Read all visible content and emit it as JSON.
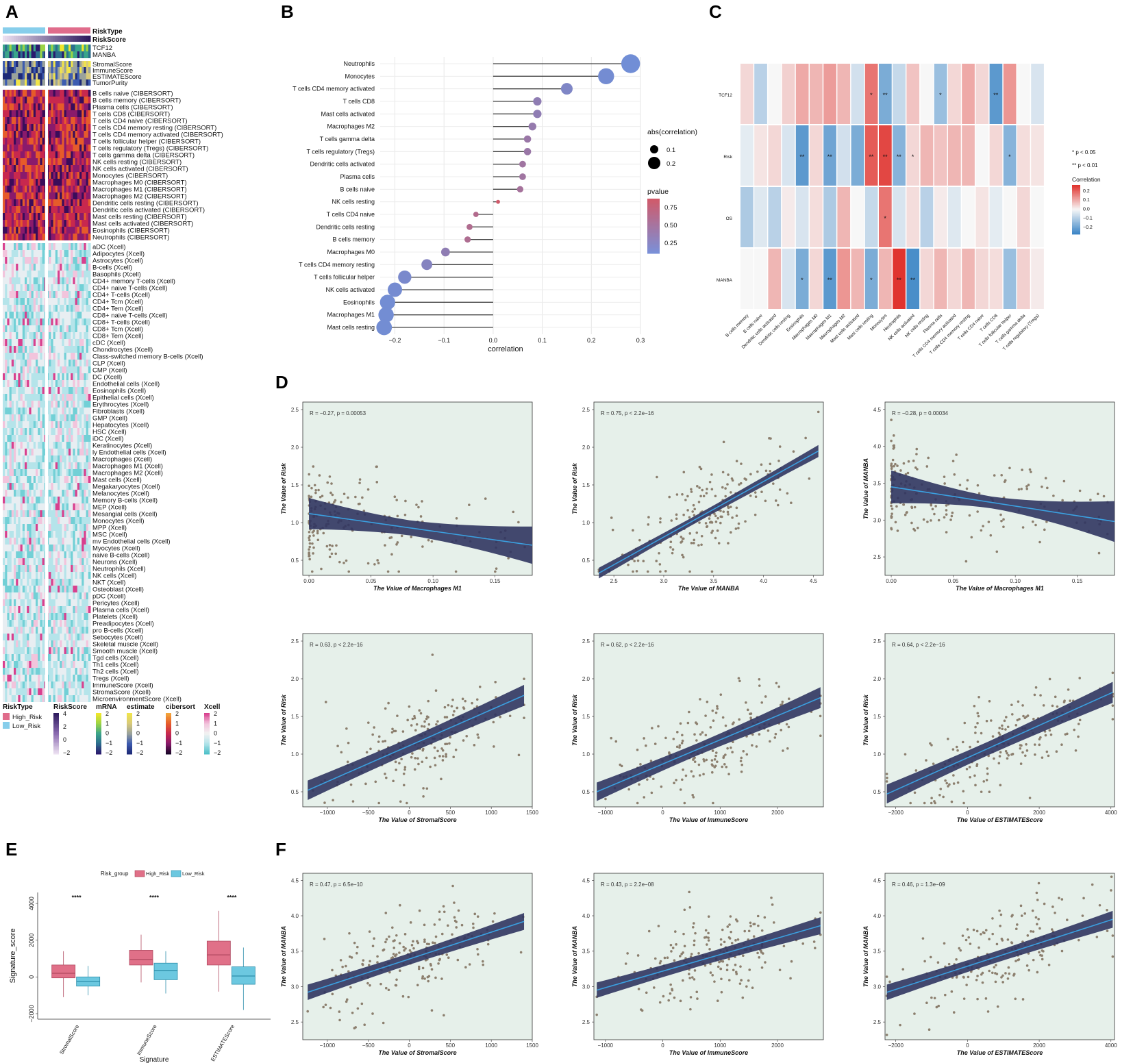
{
  "letters": {
    "a": "A",
    "b": "B",
    "c": "C",
    "d": "D",
    "e": "E",
    "f": "F"
  },
  "panelA": {
    "annot": [
      "RiskType",
      "RiskScore"
    ],
    "genes": [
      "TCF12",
      "MANBA"
    ],
    "estimate": [
      "StromalScore",
      "ImmuneScore",
      "ESTIMATEScore",
      "TumorPurity"
    ],
    "cibersort": [
      "B cells naive (CIBERSORT)",
      "B cells memory (CIBERSORT)",
      "Plasma cells (CIBERSORT)",
      "T cells CD8 (CIBERSORT)",
      "T cells CD4 naive (CIBERSORT)",
      "T cells CD4 memory resting (CIBERSORT)",
      "T cells CD4 memory activated (CIBERSORT)",
      "T cells follicular helper (CIBERSORT)",
      "T cells regulatory (Tregs) (CIBERSORT)",
      "T cells gamma delta (CIBERSORT)",
      "NK cells resting (CIBERSORT)",
      "NK cells activated (CIBERSORT)",
      "Monocytes (CIBERSORT)",
      "Macrophages M0 (CIBERSORT)",
      "Macrophages M1 (CIBERSORT)",
      "Macrophages M2 (CIBERSORT)",
      "Dendritic cells resting (CIBERSORT)",
      "Dendritic cells activated (CIBERSORT)",
      "Mast cells resting (CIBERSORT)",
      "Mast cells activated (CIBERSORT)",
      "Eosinophils (CIBERSORT)",
      "Neutrophils (CIBERSORT)"
    ],
    "xcell": [
      "aDC (Xcell)",
      "Adipocytes (Xcell)",
      "Astrocytes (Xcell)",
      "B-cells (Xcell)",
      "Basophils (Xcell)",
      "CD4+ memory T-cells (Xcell)",
      "CD4+ naive T-cells (Xcell)",
      "CD4+ T-cells (Xcell)",
      "CD4+ Tcm (Xcell)",
      "CD4+ Tem (Xcell)",
      "CD8+ naive T-cells (Xcell)",
      "CD8+ T-cells (Xcell)",
      "CD8+ Tcm (Xcell)",
      "CD8+ Tem (Xcell)",
      "cDC (Xcell)",
      "Chondrocytes (Xcell)",
      "Class-switched memory B-cells (Xcell)",
      "CLP (Xcell)",
      "CMP (Xcell)",
      "DC (Xcell)",
      "Endothelial cells (Xcell)",
      "Eosinophils (Xcell)",
      "Epithelial cells (Xcell)",
      "Erythrocytes (Xcell)",
      "Fibroblasts (Xcell)",
      "GMP (Xcell)",
      "Hepatocytes (Xcell)",
      "HSC (Xcell)",
      "iDC (Xcell)",
      "Keratinocytes (Xcell)",
      "ly Endothelial cells (Xcell)",
      "Macrophages (Xcell)",
      "Macrophages M1 (Xcell)",
      "Macrophages M2 (Xcell)",
      "Mast cells (Xcell)",
      "Megakaryocytes (Xcell)",
      "Melanocytes (Xcell)",
      "Memory B-cells (Xcell)",
      "MEP (Xcell)",
      "Mesangial cells (Xcell)",
      "Monocytes (Xcell)",
      "MPP (Xcell)",
      "MSC (Xcell)",
      "mv Endothelial cells (Xcell)",
      "Myocytes (Xcell)",
      "naive B-cells (Xcell)",
      "Neurons (Xcell)",
      "Neutrophils (Xcell)",
      "NK cells (Xcell)",
      "NKT (Xcell)",
      "Osteoblast (Xcell)",
      "pDC (Xcell)",
      "Pericytes (Xcell)",
      "Plasma cells (Xcell)",
      "Platelets (Xcell)",
      "Preadipocytes (Xcell)",
      "pro B-cells (Xcell)",
      "Sebocytes (Xcell)",
      "Skeletal muscle (Xcell)",
      "Smooth muscle (Xcell)",
      "Tgd cells (Xcell)",
      "Th1 cells (Xcell)",
      "Th2 cells (Xcell)",
      "Tregs (Xcell)",
      "ImmuneScore (Xcell)",
      "StromaScore (Xcell)",
      "MicroenvironmentScore (Xcell)"
    ],
    "legend": {
      "risktype_title": "RiskType",
      "high": "High_Risk",
      "low": "Low_Risk",
      "riskscore_title": "RiskScore",
      "riskscore_ticks": [
        "4",
        "2",
        "0",
        "−2"
      ],
      "mrna_title": "mRNA",
      "estimate_title": "estimate",
      "cibersort_title": "cibersort",
      "xcell_title": "Xcell",
      "ticks": [
        "2",
        "1",
        "0",
        "−1",
        "−2"
      ]
    }
  },
  "chart_data": [
    {
      "id": "B",
      "type": "lollipop",
      "categories": [
        "Neutrophils",
        "Monocytes",
        "T cells CD4 memory activated",
        "T cells CD8",
        "Mast cells activated",
        "Macrophages M2",
        "T cells gamma delta",
        "T cells regulatory (Tregs)",
        "Dendritic cells activated",
        "Plasma cells",
        "B cells naive",
        "NK cells resting",
        "T cells CD4 naive",
        "Dendritic cells resting",
        "B cells memory",
        "Macrophages M0",
        "T cells CD4 memory resting",
        "T cells follicular helper",
        "NK cells activated",
        "Eosinophils",
        "Macrophages M1",
        "Mast cells resting"
      ],
      "values": [
        0.28,
        0.23,
        0.15,
        0.09,
        0.09,
        0.08,
        0.07,
        0.07,
        0.06,
        0.06,
        0.055,
        0.01,
        -0.035,
        -0.048,
        -0.052,
        -0.097,
        -0.135,
        -0.18,
        -0.2,
        -0.215,
        -0.218,
        -0.222
      ],
      "pvalues": [
        0.02,
        0.05,
        0.15,
        0.3,
        0.3,
        0.35,
        0.4,
        0.4,
        0.45,
        0.45,
        0.5,
        0.9,
        0.62,
        0.6,
        0.58,
        0.3,
        0.2,
        0.1,
        0.06,
        0.04,
        0.04,
        0.04
      ],
      "xlabel": "correlation",
      "xticks": [
        "−0.2",
        "−0.1",
        "0.0",
        "0.1",
        "0.2",
        "0.3"
      ],
      "xlim": [
        -0.23,
        0.3
      ],
      "legend_size_title": "abs(correlation)",
      "legend_size_labels": [
        "0.1",
        "0.2"
      ],
      "legend_color_title": "pvalue",
      "legend_color_labels": [
        "0.75",
        "0.50",
        "0.25"
      ]
    },
    {
      "id": "C",
      "type": "heatmap",
      "rows": [
        "TCF12",
        "Risk",
        "OS",
        "MANBA"
      ],
      "columns": [
        "B cells memory",
        "B cells naive",
        "Dendritic cells activated",
        "Dendritic cells resting",
        "Eosinophils",
        "Macrophages M0",
        "Macrophages M1",
        "Macrophages M2",
        "Mast cells activated",
        "Mast cells resting",
        "Monocytes",
        "Neutrophils",
        "NK cells activated",
        "NK cells resting",
        "Plasma cells",
        "T cells CD4 memory activated",
        "T cells CD4 memory resting",
        "T cells CD4 naive",
        "T cells CD8",
        "T cells follicular helper",
        "T cells gamma delta",
        "T cells regulatory (Tregs)"
      ],
      "values": [
        [
          0.05,
          -0.1,
          0.0,
          0.06,
          0.12,
          0.1,
          0.14,
          0.1,
          -0.06,
          0.2,
          -0.2,
          -0.08,
          0.08,
          0.0,
          -0.15,
          0.05,
          0.12,
          0.05,
          -0.25,
          0.15,
          0.0,
          -0.05
        ],
        [
          -0.03,
          0.03,
          0.05,
          -0.05,
          -0.25,
          0.05,
          -0.22,
          -0.06,
          -0.2,
          0.24,
          0.27,
          -0.18,
          0.05,
          0.1,
          0.08,
          0.1,
          0.1,
          0.0,
          0.05,
          -0.18,
          0.04,
          0.03
        ],
        [
          -0.12,
          -0.04,
          -0.1,
          0.02,
          -0.05,
          0.04,
          -0.12,
          0.1,
          0.0,
          -0.08,
          0.2,
          -0.05,
          0.04,
          -0.1,
          0.02,
          -0.04,
          0.0,
          0.03,
          -0.03,
          0.0,
          0.05,
          0.0
        ],
        [
          0.0,
          0.0,
          0.1,
          -0.05,
          -0.2,
          0.05,
          -0.25,
          0.15,
          0.1,
          -0.2,
          0.1,
          0.3,
          -0.28,
          0.05,
          0.1,
          0.05,
          0.1,
          0.05,
          0.04,
          -0.15,
          0.06,
          0.02
        ]
      ],
      "stars": [
        [
          "",
          "",
          "",
          "",
          "",
          "",
          "",
          "",
          "",
          "*",
          "**",
          "",
          "",
          "",
          "*",
          "",
          "",
          "",
          "**",
          "",
          "",
          ""
        ],
        [
          "",
          "",
          "",
          "",
          "**",
          "",
          "**",
          "",
          "",
          "**",
          "**",
          "**",
          "*",
          "",
          "",
          "",
          "",
          "",
          "",
          "*",
          "",
          ""
        ],
        [
          "",
          "",
          "",
          "",
          "",
          "",
          "",
          "",
          "",
          "",
          "*",
          "",
          "",
          "",
          "",
          "",
          "",
          "",
          "",
          "",
          "",
          ""
        ],
        [
          "",
          "",
          "",
          "",
          "*",
          "",
          "**",
          "",
          "",
          "*",
          "",
          "**",
          "**",
          "",
          "",
          "",
          "",
          "",
          "",
          "",
          "",
          ""
        ]
      ],
      "legend": {
        "p05": "* p < 0.05",
        "p01": "** p < 0.01",
        "title": "Correlation",
        "ticks": [
          "0.2",
          "0.1",
          "0.0",
          "−0.1",
          "−0.2"
        ]
      }
    },
    {
      "id": "D1",
      "type": "scatter",
      "annotation": "R = −0.27, p = 0.00053",
      "xlabel": "The Value of Macrophages M1",
      "ylabel": "The Value of Risk",
      "xlim": [
        -0.005,
        0.18
      ],
      "ylim": [
        0.3,
        2.6
      ],
      "xticks": [
        0,
        0.05,
        0.1,
        0.15
      ],
      "xticklabels": [
        "0.00",
        "0.05",
        "0.10",
        "0.15"
      ],
      "yticks": [
        0.5,
        1.0,
        1.5,
        2.0,
        2.5
      ],
      "yticklabels": [
        "0.5",
        "1.0",
        "1.5",
        "2.0",
        "2.5"
      ],
      "fit": [
        [
          0,
          1.12
        ],
        [
          0.18,
          0.7
        ]
      ],
      "band": [
        0.1,
        0.25
      ],
      "xdist": "left"
    },
    {
      "id": "D2",
      "type": "scatter",
      "annotation": "R = 0.75, p < 2.2e−16",
      "xlabel": "The Value of MANBA",
      "ylabel": "The Value of Risk",
      "xlim": [
        2.3,
        4.6
      ],
      "ylim": [
        0.3,
        2.6
      ],
      "xticks": [
        2.5,
        3.0,
        3.5,
        4.0,
        4.5
      ],
      "xticklabels": [
        "2.5",
        "3.0",
        "3.5",
        "4.0",
        "4.5"
      ],
      "yticks": [
        0.5,
        1.0,
        1.5,
        2.0,
        2.5
      ],
      "yticklabels": [
        "0.5",
        "1.0",
        "1.5",
        "2.0",
        "2.5"
      ],
      "fit": [
        [
          2.35,
          0.33
        ],
        [
          4.55,
          1.95
        ]
      ],
      "band": [
        0.05,
        0.08
      ],
      "xdist": "uniform"
    },
    {
      "id": "D3",
      "type": "scatter",
      "annotation": "R = −0.28, p = 0.00034",
      "xlabel": "The Value of Macrophages M1",
      "ylabel": "The Value of MANBA",
      "xlim": [
        -0.005,
        0.18
      ],
      "ylim": [
        2.25,
        4.6
      ],
      "xticks": [
        0,
        0.05,
        0.1,
        0.15
      ],
      "xticklabels": [
        "0.00",
        "0.05",
        "0.10",
        "0.15"
      ],
      "yticks": [
        2.5,
        3.0,
        3.5,
        4.0,
        4.5
      ],
      "yticklabels": [
        "2.5",
        "3.0",
        "3.5",
        "4.0",
        "4.5"
      ],
      "fit": [
        [
          0,
          3.45
        ],
        [
          0.18,
          2.98
        ]
      ],
      "band": [
        0.08,
        0.28
      ],
      "xdist": "left"
    },
    {
      "id": "D4",
      "type": "scatter",
      "annotation": "R = 0.63, p < 2.2e−16",
      "xlabel": "The Value of StromalScore",
      "ylabel": "The Value of Risk",
      "xlim": [
        -1300,
        1500
      ],
      "ylim": [
        0.3,
        2.6
      ],
      "xticks": [
        -1000,
        -500,
        0,
        500,
        1000,
        1500
      ],
      "xticklabels": [
        "−1000",
        "−500",
        "0",
        "500",
        "1000",
        "1500"
      ],
      "yticks": [
        0.5,
        1.0,
        1.5,
        2.0,
        2.5
      ],
      "yticklabels": [
        "0.5",
        "1.0",
        "1.5",
        "2.0",
        "2.5"
      ],
      "fit": [
        [
          -1240,
          0.52
        ],
        [
          1400,
          1.78
        ]
      ],
      "band": [
        0.1,
        0.14
      ],
      "xdist": "uniform"
    },
    {
      "id": "D5",
      "type": "scatter",
      "annotation": "R = 0.62, p < 2.2e−16",
      "xlabel": "The Value of ImmuneScore",
      "ylabel": "The Value of Risk",
      "xlim": [
        -1200,
        2800
      ],
      "ylim": [
        0.3,
        2.6
      ],
      "xticks": [
        -1000,
        0,
        1000,
        2000
      ],
      "xticklabels": [
        "−1000",
        "0",
        "1000",
        "2000"
      ],
      "yticks": [
        0.5,
        1.0,
        1.5,
        2.0,
        2.5
      ],
      "yticklabels": [
        "0.5",
        "1.0",
        "1.5",
        "2.0",
        "2.5"
      ],
      "fit": [
        [
          -1150,
          0.5
        ],
        [
          2750,
          1.75
        ]
      ],
      "band": [
        0.08,
        0.14
      ],
      "xdist": "uniform"
    },
    {
      "id": "D6",
      "type": "scatter",
      "annotation": "R = 0.64, p < 2.2e−16",
      "xlabel": "The Value of ESTIMATEScore",
      "ylabel": "The Value of Risk",
      "xlim": [
        -2300,
        4100
      ],
      "ylim": [
        0.3,
        2.6
      ],
      "xticks": [
        -2000,
        0,
        2000,
        4000
      ],
      "xticklabels": [
        "−2000",
        "0",
        "2000",
        "4000"
      ],
      "yticks": [
        0.5,
        1.0,
        1.5,
        2.0,
        2.5
      ],
      "yticklabels": [
        "0.5",
        "1.0",
        "1.5",
        "2.0",
        "2.5"
      ],
      "fit": [
        [
          -2250,
          0.47
        ],
        [
          4050,
          1.82
        ]
      ],
      "band": [
        0.09,
        0.14
      ],
      "xdist": "uniform"
    },
    {
      "id": "F1",
      "type": "scatter",
      "annotation": "R = 0.47, p = 6.5e−10",
      "xlabel": "The Value of StromalScore",
      "ylabel": "The Value of MANBA",
      "xlim": [
        -1300,
        1500
      ],
      "ylim": [
        2.25,
        4.6
      ],
      "xticks": [
        -1000,
        -500,
        0,
        500,
        1000,
        1500
      ],
      "xticklabels": [
        "−1000",
        "−500",
        "0",
        "500",
        "1000",
        "1500"
      ],
      "yticks": [
        2.5,
        3.0,
        3.5,
        4.0,
        4.5
      ],
      "yticklabels": [
        "2.5",
        "3.0",
        "3.5",
        "4.0",
        "4.5"
      ],
      "fit": [
        [
          -1240,
          2.92
        ],
        [
          1400,
          3.92
        ]
      ],
      "band": [
        0.08,
        0.12
      ],
      "xdist": "uniform"
    },
    {
      "id": "F2",
      "type": "scatter",
      "annotation": "R = 0.43, p = 2.2e−08",
      "xlabel": "The Value of ImmuneScore",
      "ylabel": "The Value of MANBA",
      "xlim": [
        -1200,
        2800
      ],
      "ylim": [
        2.25,
        4.6
      ],
      "xticks": [
        -1000,
        0,
        1000,
        2000
      ],
      "xticklabels": [
        "−1000",
        "0",
        "1000",
        "2000"
      ],
      "yticks": [
        2.5,
        3.0,
        3.5,
        4.0,
        4.5
      ],
      "yticklabels": [
        "2.5",
        "3.0",
        "3.5",
        "4.0",
        "4.5"
      ],
      "fit": [
        [
          -1150,
          2.95
        ],
        [
          2750,
          3.86
        ]
      ],
      "band": [
        0.08,
        0.12
      ],
      "xdist": "uniform"
    },
    {
      "id": "F3",
      "type": "scatter",
      "annotation": "R = 0.46, p = 1.3e−09",
      "xlabel": "The Value of ESTIMATEScore",
      "ylabel": "The Value of MANBA",
      "xlim": [
        -2300,
        4100
      ],
      "ylim": [
        2.25,
        4.6
      ],
      "xticks": [
        -2000,
        0,
        2000,
        4000
      ],
      "xticklabels": [
        "−2000",
        "0",
        "2000",
        "4000"
      ],
      "yticks": [
        2.5,
        3.0,
        3.5,
        4.0,
        4.5
      ],
      "yticklabels": [
        "2.5",
        "3.0",
        "3.5",
        "4.0",
        "4.5"
      ],
      "fit": [
        [
          -2250,
          2.92
        ],
        [
          4050,
          3.95
        ]
      ],
      "band": [
        0.08,
        0.12
      ],
      "xdist": "uniform"
    },
    {
      "id": "E",
      "type": "boxplot",
      "legend_title": "Risk_group",
      "groups": [
        "High_Risk",
        "Low_Risk"
      ],
      "categories": [
        "StromalScore",
        "ImmuneScore",
        "ESTIMATEScore"
      ],
      "ylabel": "Signature_score",
      "xlabel": "Signature",
      "yticks": [
        "4000",
        "2000",
        "0",
        "−2000"
      ],
      "significance": "****",
      "boxes": [
        [
          {
            "min": -1100,
            "q1": -50,
            "med": 200,
            "q3": 650,
            "max": 1400
          },
          {
            "min": -1000,
            "q1": -500,
            "med": -250,
            "q3": 0,
            "max": 600
          }
        ],
        [
          {
            "min": -300,
            "q1": 650,
            "med": 950,
            "q3": 1450,
            "max": 2300
          },
          {
            "min": -900,
            "q1": -150,
            "med": 350,
            "q3": 750,
            "max": 1400
          }
        ],
        [
          {
            "min": -800,
            "q1": 650,
            "med": 1200,
            "q3": 1950,
            "max": 3600
          },
          {
            "min": -1800,
            "q1": -400,
            "med": 50,
            "q3": 550,
            "max": 1600
          }
        ]
      ]
    }
  ]
}
